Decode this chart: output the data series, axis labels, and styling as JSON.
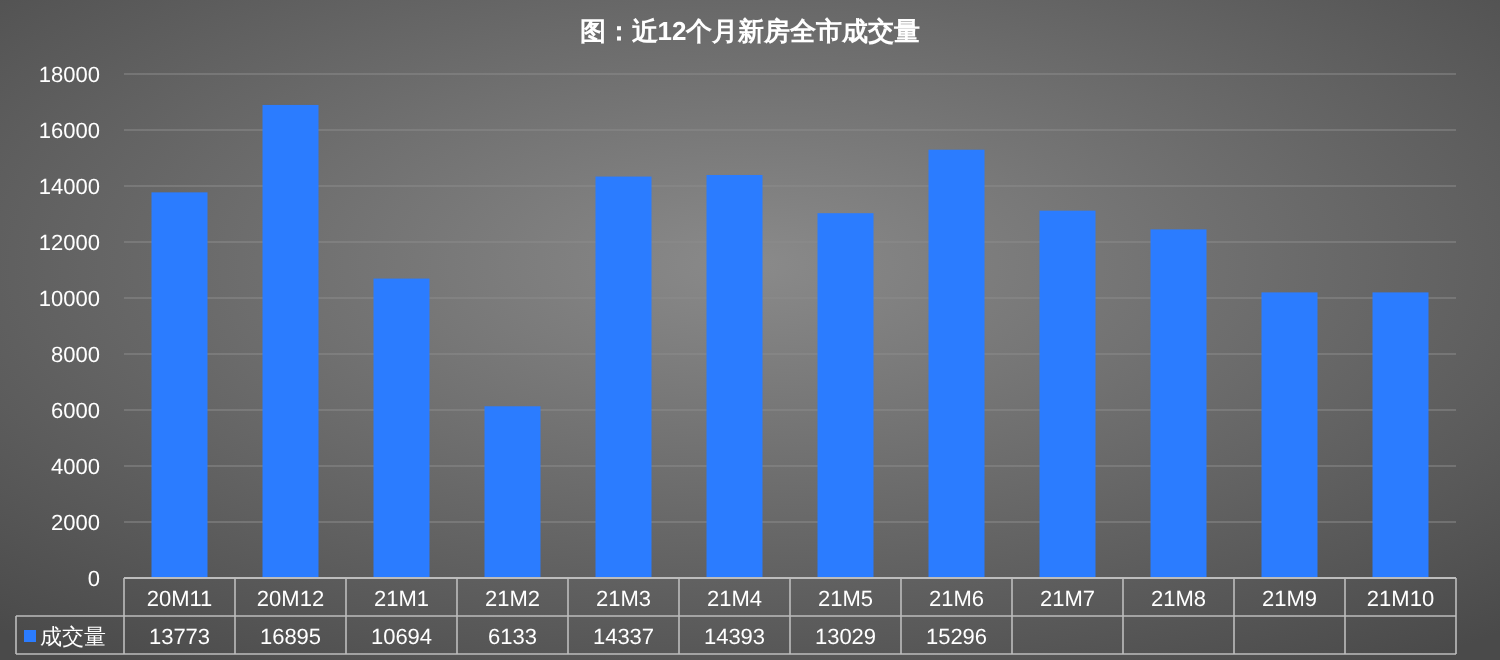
{
  "chart_data": {
    "type": "bar",
    "title": "图：近12个月新房全市成交量",
    "categories": [
      "20M11",
      "20M12",
      "21M1",
      "21M2",
      "21M3",
      "21M4",
      "21M5",
      "21M6",
      "21M7",
      "21M8",
      "21M9",
      "21M10"
    ],
    "series": [
      {
        "name": "成交量",
        "color": "#2b7cff",
        "values": [
          13773,
          16895,
          10694,
          6133,
          14337,
          14393,
          13029,
          15296,
          13120,
          12450,
          10200,
          10200
        ],
        "value_labels": [
          "13773",
          "16895",
          "10694",
          "6133",
          "14337",
          "14393",
          "13029",
          "15296",
          null,
          null,
          null,
          null
        ]
      }
    ],
    "ylim": [
      0,
      18000
    ],
    "yticks": [
      0,
      2000,
      4000,
      6000,
      8000,
      10000,
      12000,
      14000,
      16000,
      18000
    ],
    "grid": "y",
    "legend": "bottom left"
  }
}
